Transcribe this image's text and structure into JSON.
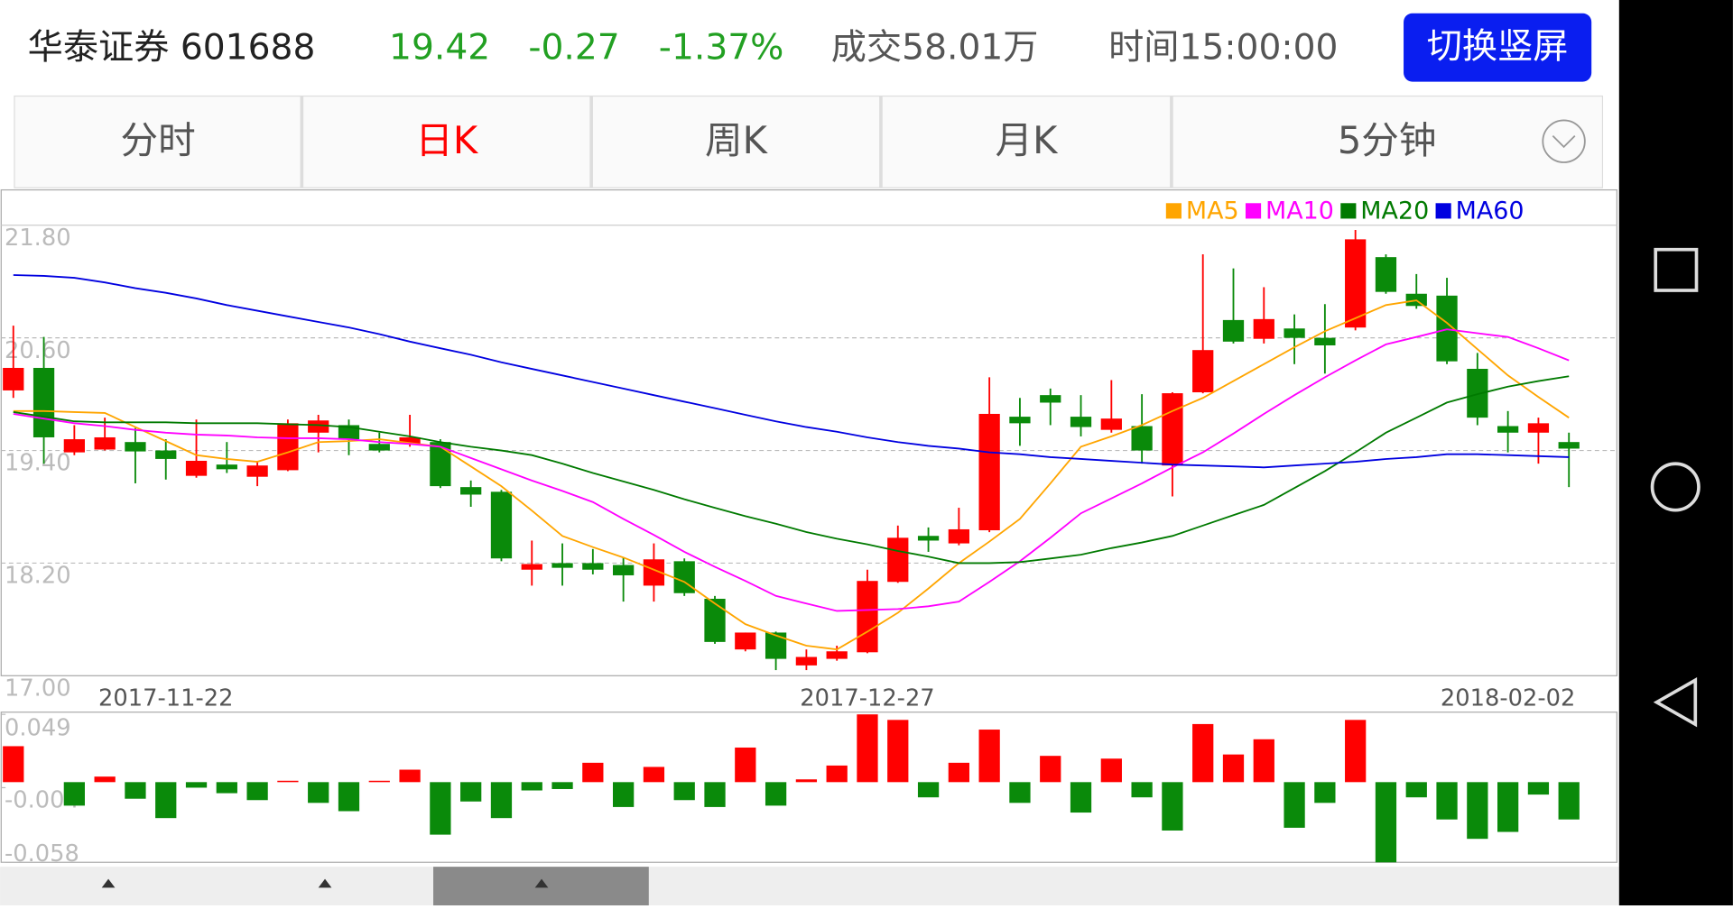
{
  "header": {
    "name": "华泰证券 601688",
    "price": "19.42",
    "change": "-0.27",
    "percent": "-1.37%",
    "volume": "成交58.01万",
    "time": "时间15:00:00",
    "button": "切换竖屏"
  },
  "tabs": [
    "分时",
    "日K",
    "周K",
    "月K",
    "5分钟"
  ],
  "chart_data": [
    {
      "type": "candlestick",
      "up_color": "#ff0000",
      "down_color": "#0a8a0a",
      "categories": [
        null,
        null,
        null,
        null,
        null,
        "2017-11-22",
        null,
        null,
        null,
        null,
        null,
        null,
        null,
        null,
        null,
        null,
        null,
        null,
        null,
        null,
        null,
        null,
        null,
        null,
        null,
        null,
        null,
        null,
        "2017-12-27",
        null,
        null,
        null,
        null,
        null,
        null,
        null,
        null,
        null,
        null,
        null,
        null,
        null,
        null,
        null,
        null,
        null,
        null,
        null,
        null,
        "2018-02-02",
        null,
        null
      ],
      "open": [
        20.04,
        20.28,
        19.38,
        19.41,
        19.49,
        19.4,
        19.13,
        19.25,
        19.12,
        19.19,
        19.59,
        19.67,
        19.47,
        19.47,
        19.49,
        19.01,
        18.96,
        18.13,
        18.2,
        18.2,
        18.18,
        17.96,
        18.22,
        17.82,
        17.28,
        17.46,
        17.11,
        17.18,
        17.25,
        18.0,
        18.49,
        18.41,
        18.55,
        19.76,
        19.99,
        19.76,
        19.62,
        19.66,
        19.24,
        20.02,
        20.79,
        20.59,
        20.7,
        20.6,
        20.71,
        21.46,
        21.07,
        21.05,
        20.27,
        19.66,
        19.59,
        19.49
      ],
      "high": [
        20.73,
        20.61,
        19.67,
        19.75,
        19.64,
        19.52,
        19.73,
        19.49,
        19.29,
        19.73,
        19.78,
        19.73,
        19.59,
        19.78,
        19.52,
        19.08,
        18.98,
        18.44,
        18.41,
        18.35,
        18.26,
        18.41,
        18.25,
        17.85,
        17.46,
        17.47,
        17.28,
        17.32,
        18.13,
        18.6,
        18.58,
        18.79,
        20.18,
        19.96,
        20.06,
        19.99,
        20.15,
        20.0,
        20.02,
        21.49,
        21.34,
        21.14,
        20.85,
        20.96,
        21.75,
        21.49,
        21.28,
        21.24,
        20.44,
        19.82,
        19.75,
        19.59
      ],
      "low": [
        19.96,
        19.26,
        19.35,
        19.4,
        19.05,
        19.09,
        19.11,
        19.16,
        19.02,
        19.18,
        19.38,
        19.35,
        19.38,
        19.44,
        19.0,
        18.8,
        18.22,
        17.96,
        17.96,
        18.08,
        17.79,
        17.79,
        17.85,
        17.34,
        17.26,
        17.06,
        17.06,
        17.16,
        17.24,
        17.99,
        18.32,
        18.39,
        18.53,
        19.45,
        19.67,
        19.55,
        19.59,
        19.26,
        18.91,
        20.01,
        20.54,
        20.54,
        20.32,
        20.22,
        20.68,
        21.07,
        20.91,
        20.32,
        19.67,
        19.38,
        19.26,
        19.01
      ],
      "close": [
        20.28,
        19.54,
        19.52,
        19.54,
        19.39,
        19.31,
        19.29,
        19.2,
        19.24,
        19.69,
        19.72,
        19.52,
        19.4,
        19.54,
        19.02,
        18.93,
        18.25,
        18.19,
        18.15,
        18.13,
        18.07,
        18.24,
        17.88,
        17.36,
        17.46,
        17.18,
        17.2,
        17.26,
        18.01,
        18.47,
        18.44,
        18.56,
        19.79,
        19.69,
        19.91,
        19.65,
        19.74,
        19.4,
        20.01,
        20.47,
        20.56,
        20.8,
        20.6,
        20.52,
        21.65,
        21.09,
        20.94,
        20.35,
        19.75,
        19.59,
        19.69,
        19.42
      ],
      "series": [
        {
          "name": "MA5",
          "color": "#ffa500",
          "values": [
            19.82,
            19.82,
            19.81,
            19.8,
            19.65,
            19.5,
            19.35,
            19.31,
            19.28,
            19.38,
            19.49,
            19.5,
            19.52,
            19.48,
            19.44,
            19.23,
            19.02,
            18.76,
            18.49,
            18.37,
            18.26,
            18.13,
            18.0,
            17.77,
            17.55,
            17.43,
            17.32,
            17.28,
            17.47,
            17.67,
            17.93,
            18.2,
            18.43,
            18.67,
            19.05,
            19.44,
            19.55,
            19.67,
            19.82,
            19.96,
            20.14,
            20.32,
            20.5,
            20.67,
            20.81,
            20.95,
            21.0,
            20.76,
            20.48,
            20.2,
            19.97,
            19.75
          ]
        },
        {
          "name": "MA10",
          "color": "#ff00ff",
          "values": [
            19.79,
            19.74,
            19.69,
            19.66,
            19.62,
            19.59,
            19.57,
            19.56,
            19.54,
            19.53,
            19.53,
            19.52,
            19.49,
            19.47,
            19.44,
            19.32,
            19.2,
            19.08,
            18.97,
            18.85,
            18.67,
            18.5,
            18.32,
            18.16,
            18.01,
            17.85,
            17.77,
            17.69,
            17.7,
            17.71,
            17.74,
            17.79,
            18.0,
            18.22,
            18.47,
            18.73,
            18.89,
            19.05,
            19.22,
            19.38,
            19.58,
            19.79,
            19.99,
            20.18,
            20.36,
            20.53,
            20.61,
            20.69,
            20.65,
            20.61,
            20.49,
            20.36
          ]
        },
        {
          "name": "MA20",
          "color": "#007a00",
          "values": [
            19.81,
            19.76,
            19.71,
            19.7,
            19.7,
            19.7,
            19.69,
            19.69,
            19.69,
            19.68,
            19.67,
            19.65,
            19.6,
            19.55,
            19.49,
            19.44,
            19.4,
            19.35,
            19.26,
            19.16,
            19.07,
            18.98,
            18.88,
            18.79,
            18.7,
            18.62,
            18.53,
            18.46,
            18.4,
            18.33,
            18.27,
            18.2,
            18.2,
            18.21,
            18.25,
            18.29,
            18.36,
            18.42,
            18.49,
            18.6,
            18.71,
            18.82,
            19.0,
            19.18,
            19.38,
            19.59,
            19.75,
            19.91,
            20.0,
            20.08,
            20.14,
            20.19
          ]
        },
        {
          "name": "MA60",
          "color": "#0000e0",
          "values": [
            21.27,
            21.26,
            21.24,
            21.19,
            21.13,
            21.08,
            21.02,
            20.95,
            20.89,
            20.83,
            20.77,
            20.71,
            20.64,
            20.56,
            20.49,
            20.42,
            20.34,
            20.27,
            20.2,
            20.13,
            20.06,
            19.99,
            19.92,
            19.85,
            19.78,
            19.71,
            19.65,
            19.6,
            19.54,
            19.49,
            19.45,
            19.42,
            19.38,
            19.36,
            19.33,
            19.31,
            19.29,
            19.27,
            19.25,
            19.24,
            19.23,
            19.22,
            19.24,
            19.26,
            19.28,
            19.31,
            19.33,
            19.36,
            19.36,
            19.35,
            19.34,
            19.33
          ]
        }
      ],
      "ylim": [
        17,
        21.8
      ],
      "yticks": [
        {
          "value": 21.8,
          "label": "21.80"
        },
        {
          "value": 20.6,
          "label": "20.60"
        },
        {
          "value": 19.4,
          "label": "19.40"
        },
        {
          "value": 18.2,
          "label": "18.20"
        },
        {
          "value": 17,
          "label": "17.00"
        }
      ],
      "grid": true
    },
    {
      "type": "bar",
      "up_color": "#ff0000",
      "down_color": "#0a8a0a",
      "values": [
        0.026,
        0,
        -0.017,
        0.004,
        -0.012,
        -0.026,
        -0.004,
        -0.008,
        -0.013,
        0.001,
        -0.015,
        -0.021,
        0.001,
        0.009,
        -0.038,
        -0.014,
        -0.026,
        -0.006,
        -0.005,
        0.014,
        -0.018,
        0.011,
        -0.013,
        -0.018,
        0.025,
        -0.017,
        0.002,
        0.012,
        0.049,
        0.045,
        -0.011,
        0.014,
        0.038,
        -0.015,
        0.019,
        -0.022,
        0.017,
        -0.011,
        -0.035,
        0.042,
        0.02,
        0.031,
        -0.033,
        -0.015,
        0.045,
        -0.058,
        -0.011,
        -0.027,
        -0.041,
        -0.036,
        -0.009,
        -0.027
      ],
      "ylim": [
        -0.058,
        0.049
      ],
      "yticks": [
        0.049,
        -0.004,
        -0.058
      ]
    }
  ]
}
